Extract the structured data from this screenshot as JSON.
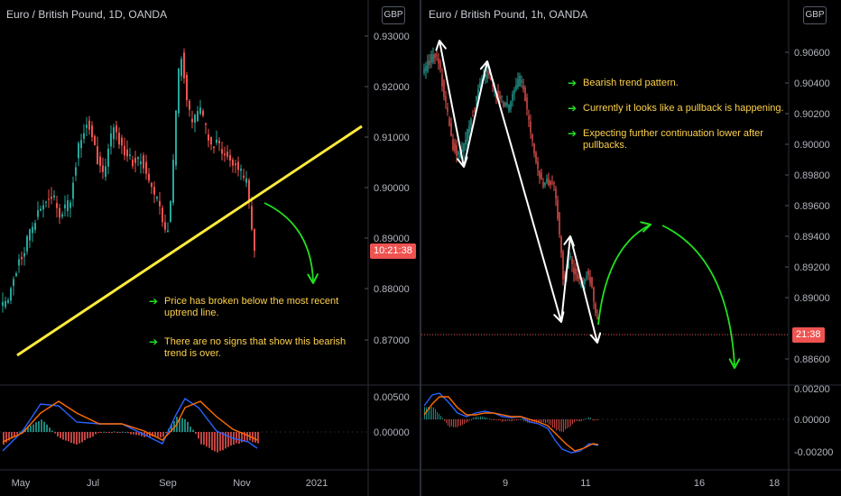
{
  "left_chart": {
    "title": "Euro / British Pound, 1D, OANDA",
    "currency_badge": "GBP",
    "price_axis": [
      "0.93000",
      "0.92000",
      "0.91000",
      "0.90000",
      "0.89000",
      "0.88000",
      "0.87000"
    ],
    "macd_axis": [
      "0.00500",
      "0.00000"
    ],
    "time_axis": [
      "May",
      "Jul",
      "Sep",
      "Nov",
      "2021"
    ],
    "countdown": "10:21:38",
    "notes": [
      "Price has broken below the most recent uptrend line.",
      "There are no signs that show this bearish trend is over."
    ]
  },
  "right_chart": {
    "title": "Euro / British Pound, 1h, OANDA",
    "currency_badge": "GBP",
    "price_axis": [
      "0.90600",
      "0.90400",
      "0.90200",
      "0.90000",
      "0.89800",
      "0.89600",
      "0.89400",
      "0.89200",
      "0.89000",
      "0.88600"
    ],
    "macd_axis": [
      "0.00200",
      "0.00000",
      "-0.00200"
    ],
    "time_axis": [
      "9",
      "11",
      "16",
      "18"
    ],
    "countdown": "21:38",
    "notes": [
      "Bearish trend pattern.",
      "Currently it looks like a pullback is happening.",
      "Expecting further continuation lower after pullbacks."
    ]
  },
  "colors": {
    "bull": "#26a69a",
    "bear": "#ef5350",
    "trendline": "#ffeb3b",
    "projection": "#22e020",
    "swing": "#ffffff",
    "note_text": "#ffd24a",
    "macd_line": "#2962ff",
    "signal_line": "#ff6d00"
  },
  "icons": {
    "bullet": "green-arrow-icon"
  }
}
